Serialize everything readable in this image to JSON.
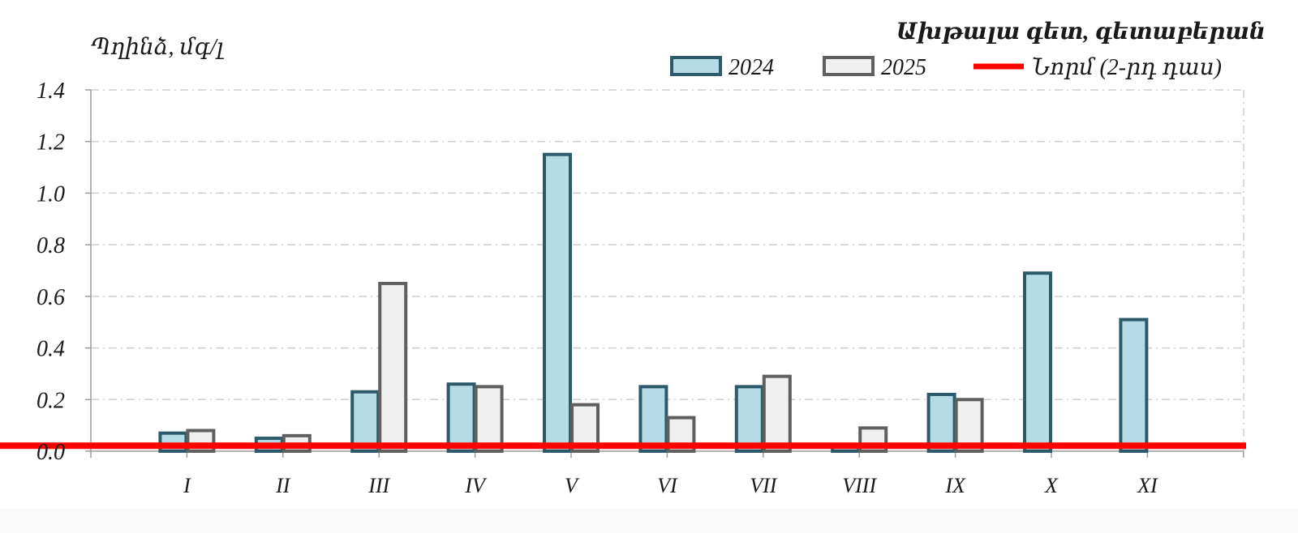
{
  "chart_data": {
    "type": "bar",
    "title": "Ախթալա գետ, գետաբերան",
    "ylabel": "Պղինձ, մգ/լ",
    "xlabel": "",
    "categories": [
      "I",
      "II",
      "III",
      "IV",
      "V",
      "VI",
      "VII",
      "VIII",
      "IX",
      "X",
      "XI"
    ],
    "series": [
      {
        "name": "2024",
        "values": [
          0.07,
          0.05,
          0.23,
          0.26,
          1.15,
          0.25,
          0.25,
          0.02,
          0.22,
          0.69,
          0.51
        ],
        "color": "#b5dce6",
        "stroke": "#2c5a6a"
      },
      {
        "name": "2025",
        "values": [
          0.08,
          0.06,
          0.65,
          0.25,
          0.18,
          0.13,
          0.29,
          0.09,
          0.2,
          null,
          null
        ],
        "color": "#f0f0f0",
        "stroke": "#5f5f5f"
      }
    ],
    "norm": {
      "name": "Նորմ (2-րդ դաս)",
      "value": 0.021,
      "color": "#ff0000"
    },
    "ylim": [
      0,
      1.4
    ],
    "yticks": [
      "0.0",
      "0.2",
      "0.4",
      "0.6",
      "0.8",
      "1.0",
      "1.2",
      "1.4"
    ],
    "grid": true,
    "legend_position": "top-right"
  }
}
